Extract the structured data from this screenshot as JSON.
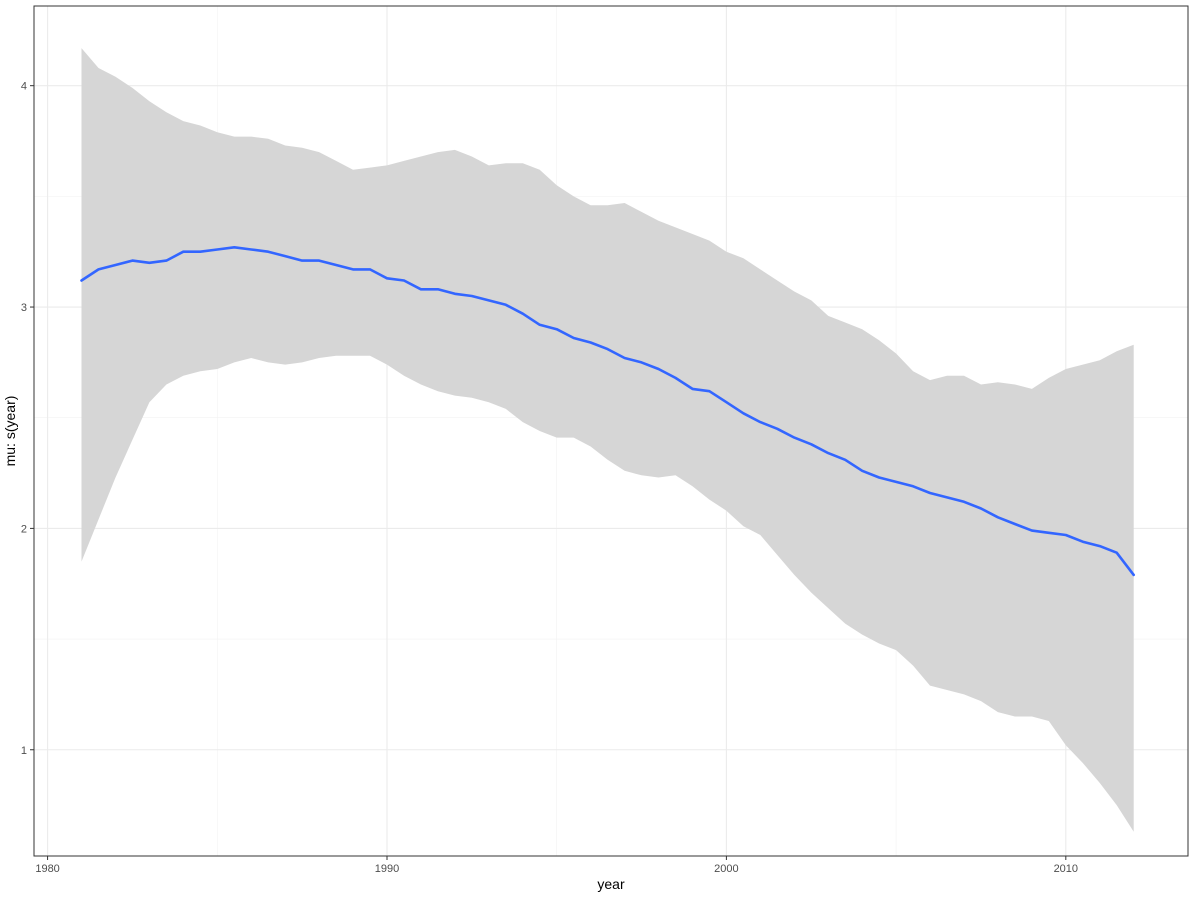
{
  "chart_data": {
    "type": "line",
    "title": "",
    "xlabel": "year",
    "ylabel": "mu: s(year)",
    "xlim": [
      1979.6,
      2013.6
    ],
    "ylim": [
      0.52,
      4.36
    ],
    "x_ticks": [
      1980,
      1990,
      2000,
      2010
    ],
    "x_tick_labels": [
      "1980",
      "1990",
      "2000",
      "2010"
    ],
    "y_ticks": [
      1,
      2,
      3,
      4
    ],
    "y_tick_labels": [
      "1",
      "2",
      "3",
      "4"
    ],
    "grid": true,
    "legend": "none",
    "series": [
      {
        "kind": "smooth",
        "color": "#3366FF",
        "x": [
          1981,
          1981.5,
          1982,
          1982.5,
          1983,
          1983.5,
          1984,
          1984.5,
          1985,
          1985.5,
          1986,
          1986.5,
          1987,
          1987.5,
          1988,
          1988.5,
          1989,
          1989.5,
          1990,
          1990.5,
          1991,
          1991.5,
          1992,
          1992.5,
          1993,
          1993.5,
          1994,
          1994.5,
          1995,
          1995.5,
          1996,
          1996.5,
          1997,
          1997.5,
          1998,
          1998.5,
          1999,
          1999.5,
          2000,
          2000.5,
          2001,
          2001.5,
          2002,
          2002.5,
          2003,
          2003.5,
          2004,
          2004.5,
          2005,
          2005.5,
          2006,
          2006.5,
          2007,
          2007.5,
          2008,
          2008.5,
          2009,
          2009.5,
          2010,
          2010.5,
          2011,
          2011.5,
          2012
        ],
        "y": [
          3.12,
          3.17,
          3.19,
          3.21,
          3.2,
          3.21,
          3.25,
          3.25,
          3.26,
          3.27,
          3.26,
          3.25,
          3.23,
          3.21,
          3.21,
          3.19,
          3.17,
          3.17,
          3.13,
          3.12,
          3.08,
          3.08,
          3.06,
          3.05,
          3.03,
          3.01,
          2.97,
          2.92,
          2.9,
          2.86,
          2.84,
          2.81,
          2.77,
          2.75,
          2.72,
          2.68,
          2.63,
          2.62,
          2.57,
          2.52,
          2.48,
          2.45,
          2.41,
          2.38,
          2.34,
          2.31,
          2.26,
          2.23,
          2.21,
          2.19,
          2.16,
          2.14,
          2.12,
          2.09,
          2.05,
          2.02,
          1.99,
          1.98,
          1.97,
          1.94,
          1.92,
          1.89,
          1.79
        ]
      },
      {
        "kind": "ribbon",
        "color": "#D6D6D6",
        "x": [
          1981,
          1981.5,
          1982,
          1982.5,
          1983,
          1983.5,
          1984,
          1984.5,
          1985,
          1985.5,
          1986,
          1986.5,
          1987,
          1987.5,
          1988,
          1988.5,
          1989,
          1989.5,
          1990,
          1990.5,
          1991,
          1991.5,
          1992,
          1992.5,
          1993,
          1993.5,
          1994,
          1994.5,
          1995,
          1995.5,
          1996,
          1996.5,
          1997,
          1997.5,
          1998,
          1998.5,
          1999,
          1999.5,
          2000,
          2000.5,
          2001,
          2001.5,
          2002,
          2002.5,
          2003,
          2003.5,
          2004,
          2004.5,
          2005,
          2005.5,
          2006,
          2006.5,
          2007,
          2007.5,
          2008,
          2008.5,
          2009,
          2009.5,
          2010,
          2010.5,
          2011,
          2011.5,
          2012
        ],
        "upper": [
          4.17,
          4.08,
          4.04,
          3.99,
          3.93,
          3.88,
          3.84,
          3.82,
          3.79,
          3.77,
          3.77,
          3.76,
          3.73,
          3.72,
          3.7,
          3.66,
          3.62,
          3.63,
          3.64,
          3.66,
          3.68,
          3.7,
          3.71,
          3.68,
          3.64,
          3.65,
          3.65,
          3.62,
          3.55,
          3.5,
          3.46,
          3.46,
          3.47,
          3.43,
          3.39,
          3.36,
          3.33,
          3.3,
          3.25,
          3.22,
          3.17,
          3.12,
          3.07,
          3.03,
          2.96,
          2.93,
          2.9,
          2.85,
          2.79,
          2.71,
          2.67,
          2.69,
          2.69,
          2.65,
          2.66,
          2.65,
          2.63,
          2.68,
          2.72,
          2.74,
          2.76,
          2.8,
          2.83
        ],
        "lower": [
          1.85,
          2.04,
          2.23,
          2.4,
          2.57,
          2.65,
          2.69,
          2.71,
          2.72,
          2.75,
          2.77,
          2.75,
          2.74,
          2.75,
          2.77,
          2.78,
          2.78,
          2.78,
          2.74,
          2.69,
          2.65,
          2.62,
          2.6,
          2.59,
          2.57,
          2.54,
          2.48,
          2.44,
          2.41,
          2.41,
          2.37,
          2.31,
          2.26,
          2.24,
          2.23,
          2.24,
          2.19,
          2.13,
          2.08,
          2.01,
          1.97,
          1.88,
          1.79,
          1.71,
          1.64,
          1.57,
          1.52,
          1.48,
          1.45,
          1.38,
          1.29,
          1.27,
          1.25,
          1.22,
          1.17,
          1.15,
          1.15,
          1.13,
          1.02,
          0.94,
          0.85,
          0.75,
          0.63
        ]
      }
    ]
  }
}
